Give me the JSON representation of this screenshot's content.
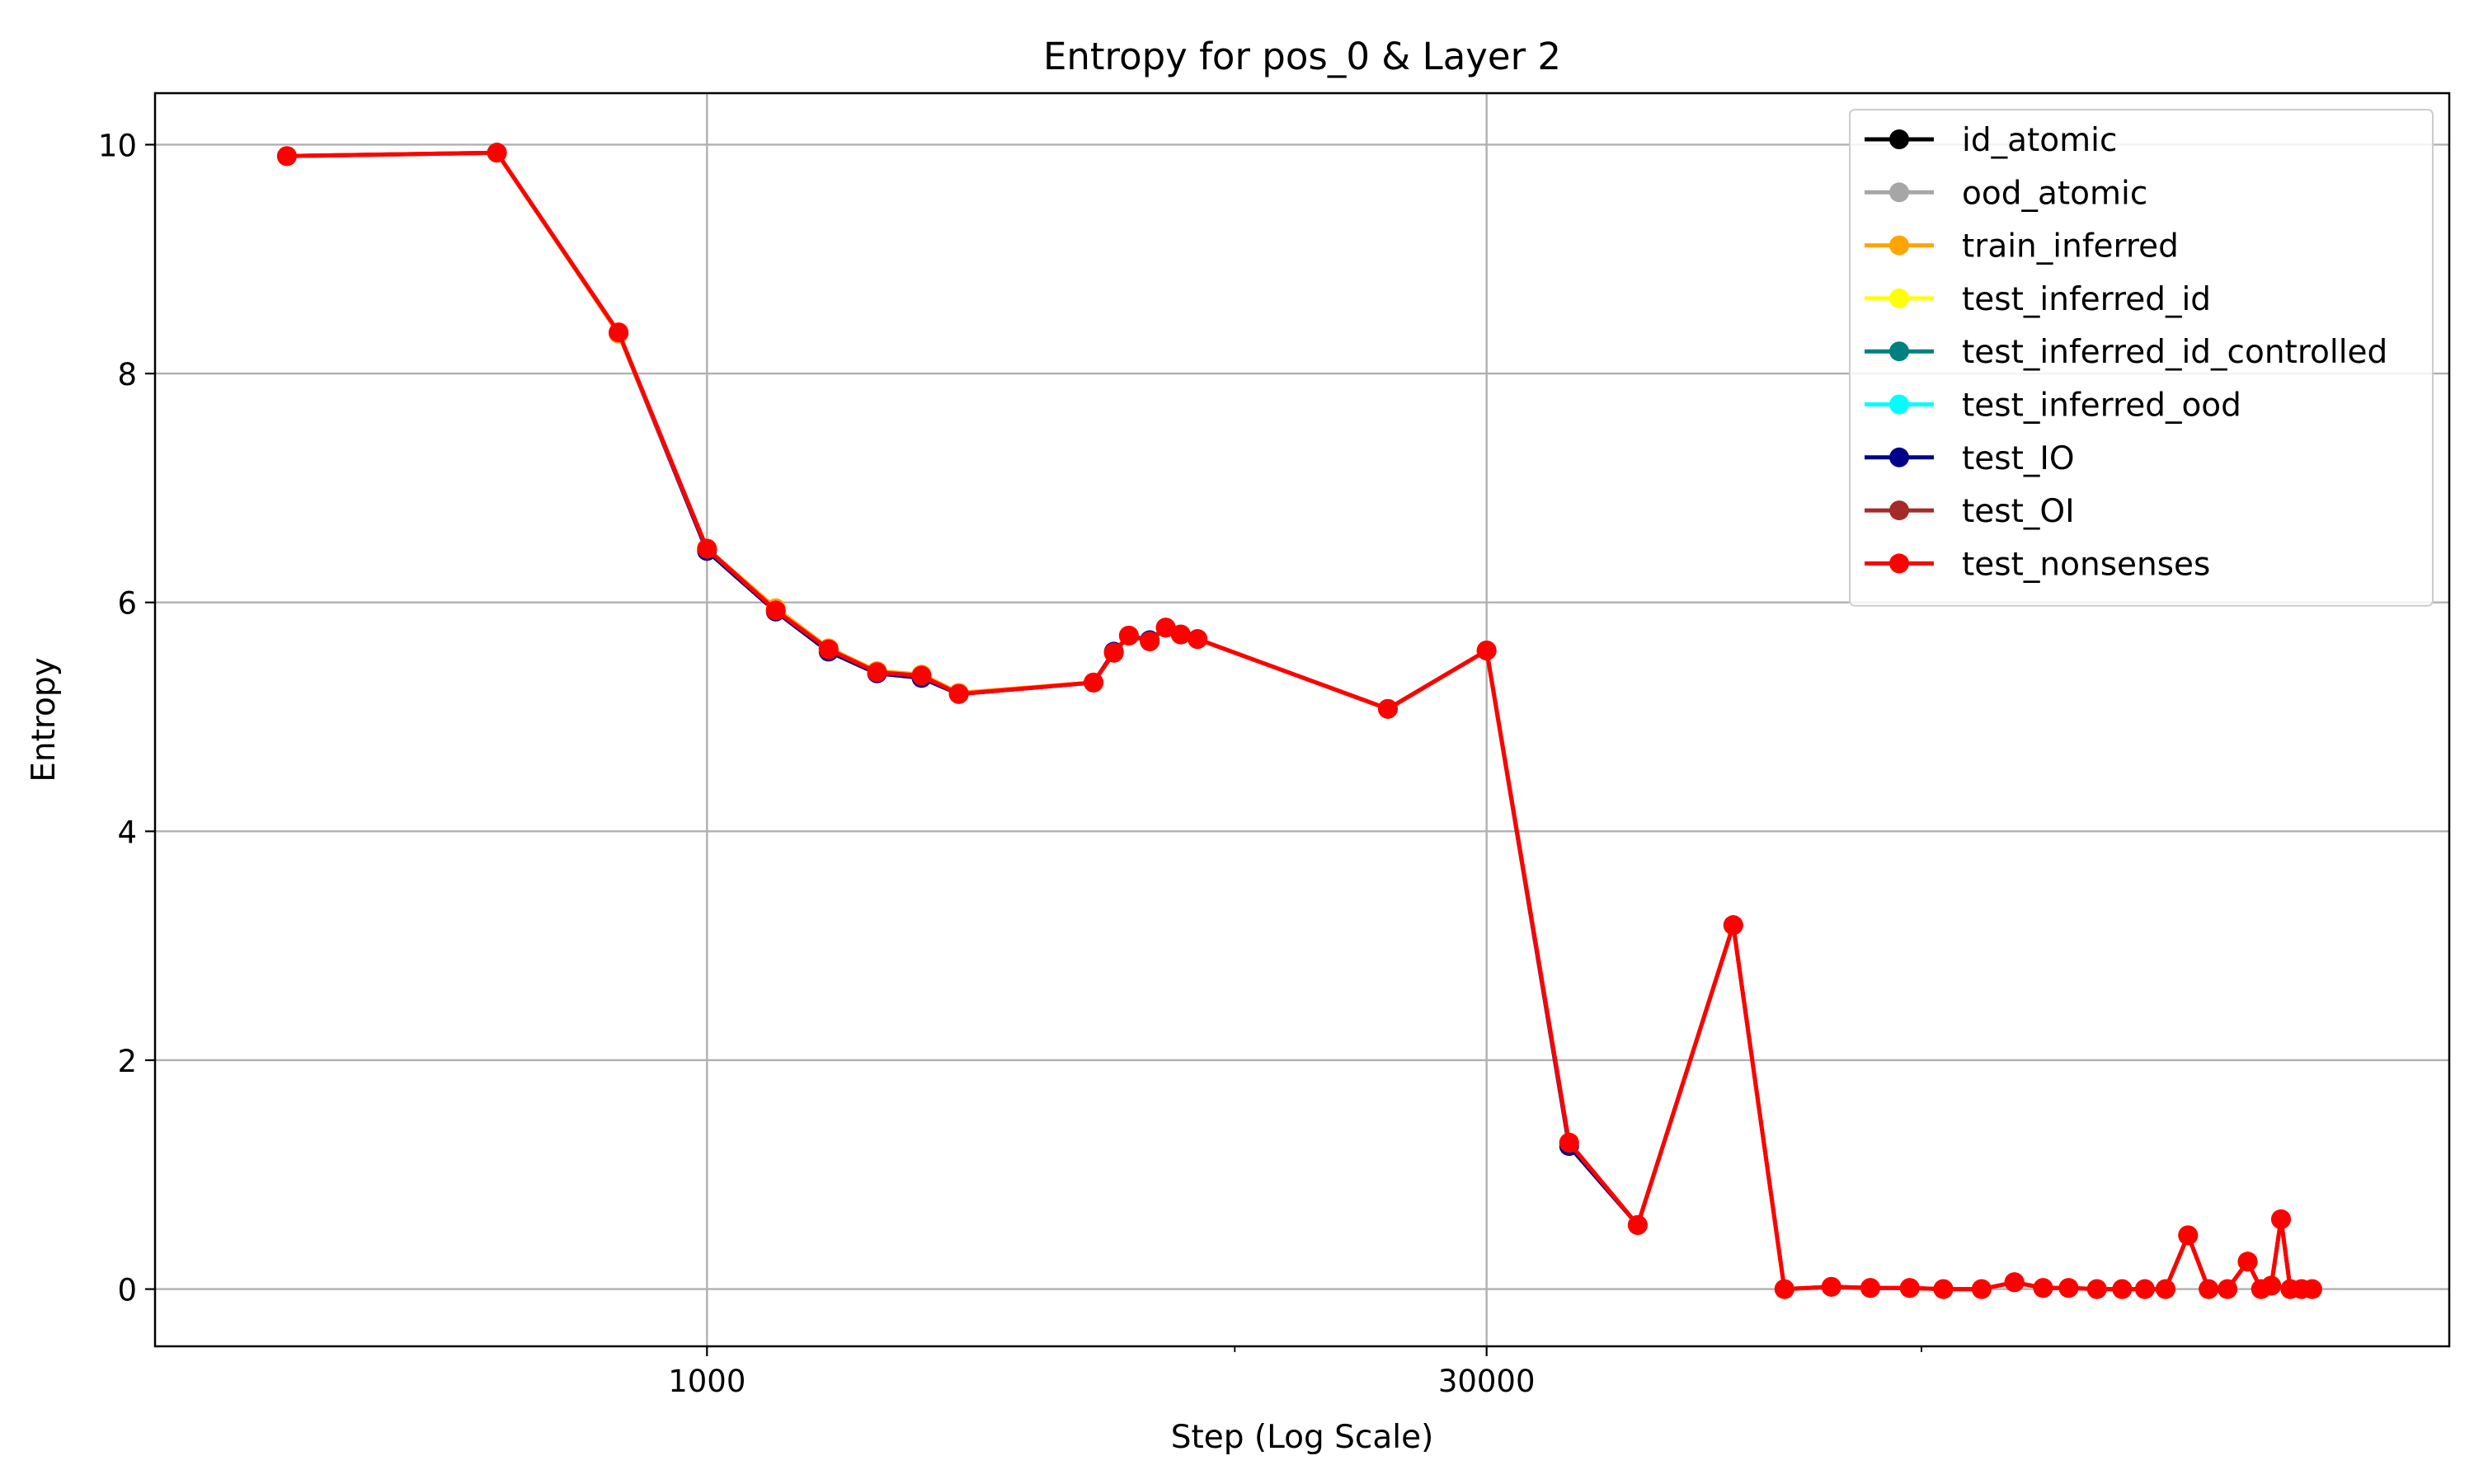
{
  "chart_data": {
    "type": "line",
    "title": "Entropy for pos_0 & Layer 2",
    "xlabel": "Step (Log Scale)",
    "ylabel": "Entropy",
    "xscale": "log",
    "xlim": [
      90,
      2000000
    ],
    "ylim": [
      -0.5,
      10.45
    ],
    "xticks": [
      {
        "value": 1000,
        "label": "1000"
      },
      {
        "value": 30000,
        "label": "30000"
      }
    ],
    "xminor_ticks": [
      10000,
      200000
    ],
    "yticks": [
      {
        "value": 0,
        "label": "0"
      },
      {
        "value": 2,
        "label": "2"
      },
      {
        "value": 4,
        "label": "4"
      },
      {
        "value": 6,
        "label": "6"
      },
      {
        "value": 8,
        "label": "8"
      },
      {
        "value": 10,
        "label": "10"
      }
    ],
    "grid": true,
    "legend_position": "top-right",
    "colors": {
      "id_atomic": "#000000",
      "ood_atomic": "#a6a6a6",
      "train_inferred": "#ffa500",
      "test_inferred_id": "#ffff00",
      "test_inferred_id_controlled": "#008080",
      "test_inferred_ood": "#00ffff",
      "test_IO": "#00008b",
      "test_OI": "#a52a2a",
      "test_nonsenses": "#ff0000"
    },
    "legend": [
      "id_atomic",
      "ood_atomic",
      "train_inferred",
      "test_inferred_id",
      "test_inferred_id_controlled",
      "test_inferred_ood",
      "test_IO",
      "test_OI",
      "test_nonsenses"
    ],
    "x": [
      160,
      400,
      680,
      1000,
      1350,
      1700,
      2100,
      2550,
      3000,
      5400,
      5900,
      6300,
      6900,
      7400,
      7900,
      8500,
      19500,
      30000,
      43000,
      58000,
      88000,
      110000,
      135000,
      160000,
      190000,
      220000,
      260000,
      300000,
      340000,
      380000,
      430000,
      480000,
      530000,
      580000,
      640000,
      700000,
      760000,
      830000,
      880000,
      920000,
      960000,
      1000000,
      1050000,
      1100000
    ],
    "series": [
      {
        "name": "test_IO",
        "values": [
          9.9,
          9.93,
          8.35,
          6.45,
          5.92,
          5.57,
          5.38,
          5.34,
          5.2,
          5.3,
          5.57,
          5.71,
          5.67,
          5.78,
          5.72,
          5.68,
          5.07,
          5.58,
          1.25,
          0.56,
          3.18,
          0.0,
          0.02,
          0.01,
          0.01,
          0.0,
          0.0,
          0.06,
          0.01,
          0.01,
          0.0,
          0.0,
          0.0,
          0.0,
          0.47,
          0.0,
          0.0,
          0.24,
          0.0,
          0.03,
          0.61,
          0.0,
          0.0,
          0.0
        ]
      },
      {
        "name": "train_inferred",
        "values": [
          9.9,
          9.93,
          8.35,
          6.47,
          5.95,
          5.6,
          5.4,
          5.37,
          5.21,
          5.3,
          5.56,
          5.71,
          5.66,
          5.78,
          5.72,
          5.68,
          5.07,
          5.58,
          1.28,
          0.56,
          3.18,
          0.0,
          0.02,
          0.01,
          0.01,
          0.0,
          0.0,
          0.06,
          0.01,
          0.01,
          0.0,
          0.0,
          0.0,
          0.0,
          0.47,
          0.0,
          0.0,
          0.24,
          0.0,
          0.03,
          0.61,
          0.0,
          0.0,
          0.0
        ]
      },
      {
        "name": "test_nonsenses",
        "values": [
          9.9,
          9.93,
          8.36,
          6.47,
          5.93,
          5.59,
          5.39,
          5.36,
          5.2,
          5.3,
          5.56,
          5.71,
          5.66,
          5.78,
          5.72,
          5.68,
          5.07,
          5.58,
          1.28,
          0.56,
          3.18,
          0.0,
          0.02,
          0.01,
          0.01,
          0.0,
          0.0,
          0.06,
          0.01,
          0.01,
          0.0,
          0.0,
          0.0,
          0.0,
          0.47,
          0.0,
          0.0,
          0.24,
          0.0,
          0.03,
          0.61,
          0.0,
          0.0,
          0.0
        ]
      }
    ]
  }
}
